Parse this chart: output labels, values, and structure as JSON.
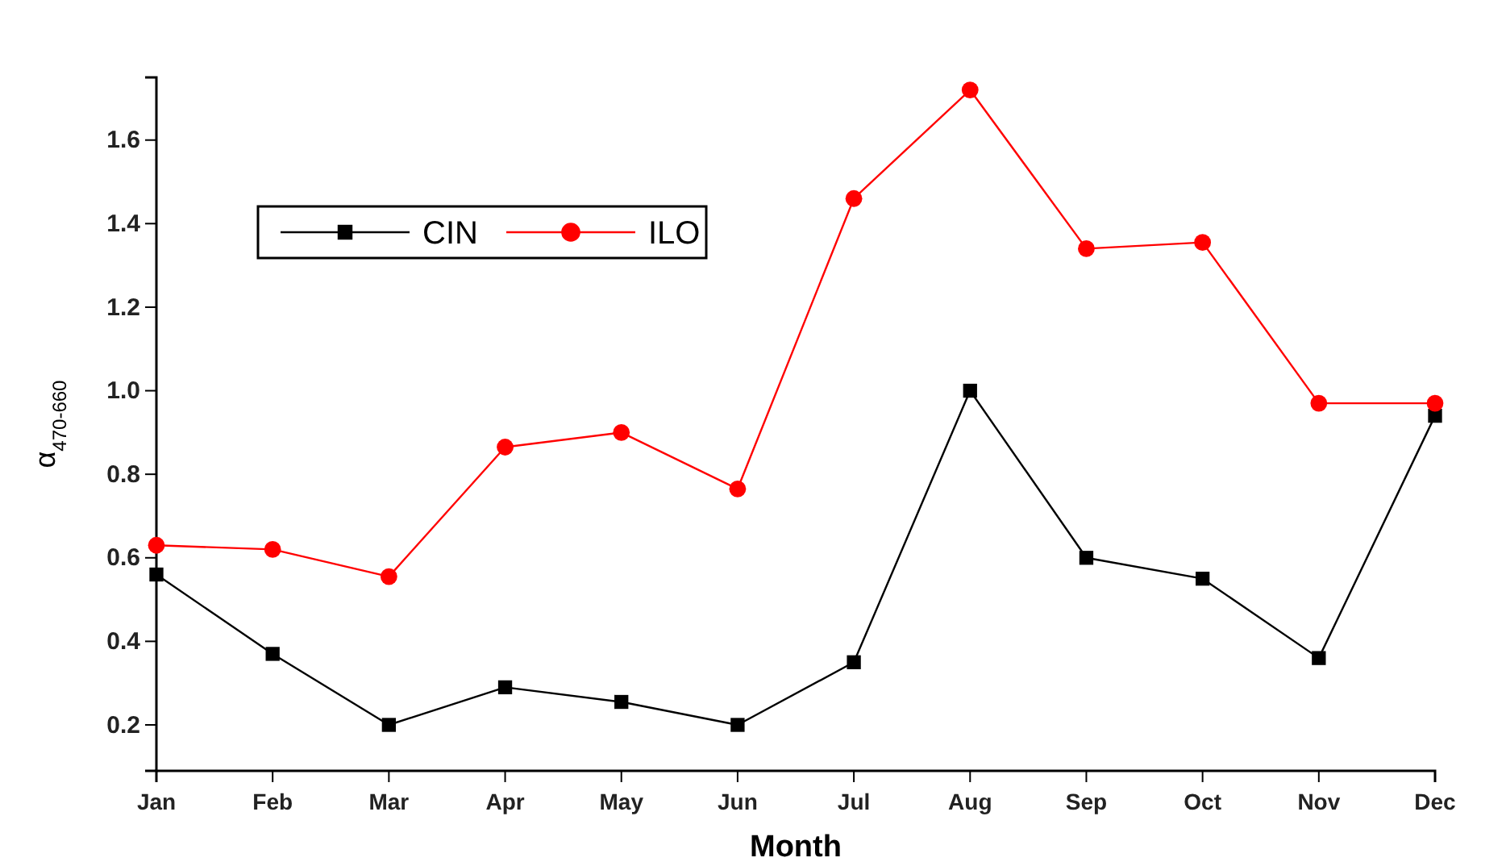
{
  "chart_data": {
    "type": "line",
    "xlabel": "Month",
    "ylabel": "α$_{470-660}$",
    "categories": [
      "Jan",
      "Feb",
      "Mar",
      "Apr",
      "May",
      "Jun",
      "Jul",
      "Aug",
      "Sep",
      "Oct",
      "Nov",
      "Dec"
    ],
    "series": [
      {
        "name": "CIN",
        "color": "#000000",
        "marker": "square",
        "values": [
          0.56,
          0.37,
          0.2,
          0.29,
          0.255,
          0.2,
          0.35,
          1.0,
          0.6,
          0.55,
          0.36,
          0.94
        ]
      },
      {
        "name": "ILO",
        "color": "#ff0000",
        "marker": "circle",
        "values": [
          0.63,
          0.62,
          0.555,
          0.865,
          0.9,
          0.765,
          1.46,
          1.72,
          1.34,
          1.355,
          0.97,
          0.97
        ]
      }
    ],
    "ylim": [
      0.09,
      1.75
    ],
    "yticks": [
      0.2,
      0.4,
      0.6,
      0.8,
      {
        "value": 1.0,
        "label": "1.0"
      },
      1.2,
      1.4,
      1.6
    ],
    "grid": false,
    "legend": "top left",
    "line_style": "solid"
  }
}
